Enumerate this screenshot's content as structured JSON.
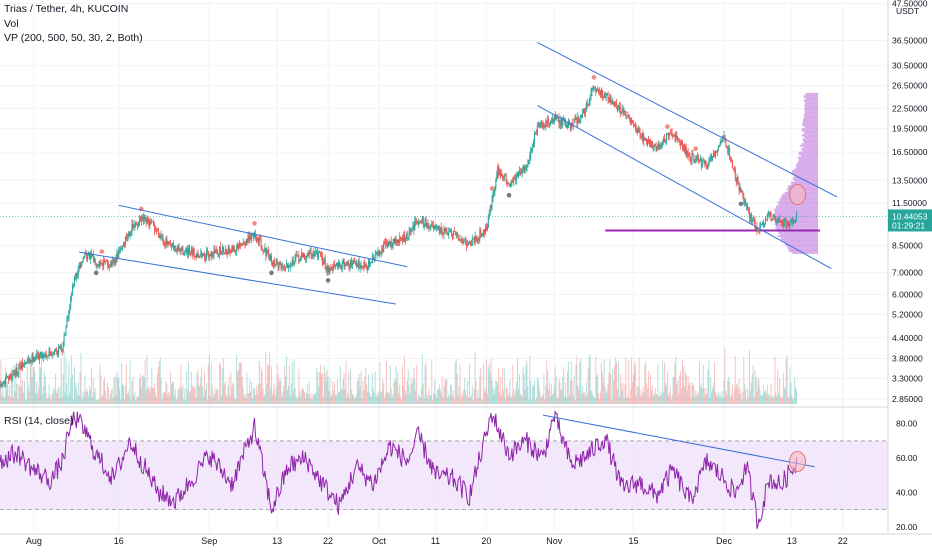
{
  "header": {
    "title": "Trias / Tether, 4h, KUCOIN",
    "vol_label": "Vol",
    "vp_label": "VP (200, 500, 50, 30, 2, Both)",
    "rsi_label": "RSI (14, close)"
  },
  "currency_unit": "USDT",
  "colors": {
    "up": "#26a69a",
    "down": "#ef5350",
    "trendline": "#3a6fd8",
    "rsi": "#8e24aa",
    "rsi_band": "#efe0fa",
    "profile": "#c98ee3",
    "poc": "#9c27b0",
    "price_tag": "#26a69a",
    "circle": "#f7b9bf"
  },
  "chart_data": [
    {
      "type": "candlestick",
      "title": "Trias / Tether, 4h, KUCOIN",
      "scale": "log",
      "ylim": [
        2.75,
        48
      ],
      "y_ticks": [
        "47.50000",
        "36.50000",
        "30.50000",
        "26.50000",
        "22.50000",
        "19.50000",
        "16.50000",
        "13.50000",
        "11.50000",
        "8.50000",
        "7.00000",
        "6.00000",
        "5.20000",
        "4.40000",
        "3.80000",
        "3.30000",
        "2.85000"
      ],
      "last_price": "10.44053",
      "countdown": "01:29:21",
      "x_ticks": [
        "Aug",
        "16",
        "Sep",
        "13",
        "22",
        "Oct",
        "11",
        "20",
        "Nov",
        "15",
        "Dec",
        "13",
        "22"
      ],
      "x_tick_dates": [
        "2020-08-01",
        "2020-08-16",
        "2020-09-01",
        "2020-09-13",
        "2020-09-22",
        "2020-10-01",
        "2020-10-11",
        "2020-10-20",
        "2020-11-01",
        "2020-11-15",
        "2020-12-01",
        "2020-12-13",
        "2020-12-22"
      ],
      "xlim": [
        "2020-07-26",
        "2020-12-30"
      ],
      "close_path": [
        [
          "2020-07-26",
          3.1
        ],
        [
          "2020-07-29",
          3.5
        ],
        [
          "2020-08-01",
          3.85
        ],
        [
          "2020-08-04",
          3.95
        ],
        [
          "2020-08-06",
          4.1
        ],
        [
          "2020-08-08",
          6.5
        ],
        [
          "2020-08-10",
          8.0
        ],
        [
          "2020-08-12",
          7.6
        ],
        [
          "2020-08-15",
          7.4
        ],
        [
          "2020-08-18",
          9.5
        ],
        [
          "2020-08-20",
          10.2
        ],
        [
          "2020-08-22",
          9.8
        ],
        [
          "2020-08-25",
          8.4
        ],
        [
          "2020-08-28",
          8.1
        ],
        [
          "2020-08-31",
          7.9
        ],
        [
          "2020-09-03",
          8.2
        ],
        [
          "2020-09-06",
          8.3
        ],
        [
          "2020-09-09",
          9.2
        ],
        [
          "2020-09-12",
          7.6
        ],
        [
          "2020-09-14",
          7.3
        ],
        [
          "2020-09-17",
          7.8
        ],
        [
          "2020-09-20",
          8.1
        ],
        [
          "2020-09-22",
          7.2
        ],
        [
          "2020-09-25",
          7.5
        ],
        [
          "2020-09-29",
          7.4
        ],
        [
          "2020-10-02",
          8.5
        ],
        [
          "2020-10-06",
          9.0
        ],
        [
          "2020-10-08",
          10.3
        ],
        [
          "2020-10-11",
          9.5
        ],
        [
          "2020-10-14",
          9.2
        ],
        [
          "2020-10-17",
          8.6
        ],
        [
          "2020-10-20",
          9.6
        ],
        [
          "2020-10-22",
          14.5
        ],
        [
          "2020-10-24",
          13.2
        ],
        [
          "2020-10-27",
          14.8
        ],
        [
          "2020-10-29",
          19.5
        ],
        [
          "2020-11-01",
          21.0
        ],
        [
          "2020-11-04",
          20.0
        ],
        [
          "2020-11-06",
          21.5
        ],
        [
          "2020-11-08",
          26.0
        ],
        [
          "2020-11-11",
          24.0
        ],
        [
          "2020-11-14",
          21.0
        ],
        [
          "2020-11-17",
          18.0
        ],
        [
          "2020-11-19",
          17.0
        ],
        [
          "2020-11-22",
          19.0
        ],
        [
          "2020-11-25",
          16.0
        ],
        [
          "2020-11-28",
          15.0
        ],
        [
          "2020-12-01",
          18.5
        ],
        [
          "2020-12-03",
          14.0
        ],
        [
          "2020-12-05",
          11.0
        ],
        [
          "2020-12-07",
          9.4
        ],
        [
          "2020-12-09",
          10.5
        ],
        [
          "2020-12-12",
          9.9
        ],
        [
          "2020-12-14",
          10.44
        ]
      ],
      "trendlines": [
        {
          "p1": [
            "2020-08-16",
            11.3
          ],
          "p2": [
            "2020-10-06",
            7.3
          ]
        },
        {
          "p1": [
            "2020-08-09",
            8.1
          ],
          "p2": [
            "2020-10-04",
            5.6
          ]
        },
        {
          "p1": [
            "2020-10-29",
            36.0
          ],
          "p2": [
            "2020-12-21",
            12.0
          ]
        },
        {
          "p1": [
            "2020-10-29",
            23.0
          ],
          "p2": [
            "2020-12-20",
            7.2
          ]
        }
      ],
      "poc_line": {
        "price": 9.45,
        "from": "2020-11-10",
        "to": "2020-12-18"
      },
      "highlight": {
        "date": "2020-12-14",
        "price": 12.2
      }
    },
    {
      "type": "line",
      "title": "RSI (14, close)",
      "ylim": [
        17,
        88
      ],
      "y_ticks": [
        80,
        60,
        40,
        20
      ],
      "bands": [
        30,
        70
      ],
      "path": [
        [
          "2020-07-26",
          58
        ],
        [
          "2020-07-29",
          63
        ],
        [
          "2020-08-01",
          53
        ],
        [
          "2020-08-04",
          47
        ],
        [
          "2020-08-06",
          58
        ],
        [
          "2020-08-08",
          85
        ],
        [
          "2020-08-10",
          76
        ],
        [
          "2020-08-12",
          62
        ],
        [
          "2020-08-15",
          48
        ],
        [
          "2020-08-18",
          70
        ],
        [
          "2020-08-20",
          58
        ],
        [
          "2020-08-23",
          40
        ],
        [
          "2020-08-26",
          35
        ],
        [
          "2020-08-29",
          48
        ],
        [
          "2020-09-01",
          62
        ],
        [
          "2020-09-05",
          45
        ],
        [
          "2020-09-09",
          78
        ],
        [
          "2020-09-12",
          30
        ],
        [
          "2020-09-15",
          55
        ],
        [
          "2020-09-18",
          60
        ],
        [
          "2020-09-21",
          45
        ],
        [
          "2020-09-24",
          32
        ],
        [
          "2020-09-27",
          55
        ],
        [
          "2020-09-30",
          45
        ],
        [
          "2020-10-03",
          67
        ],
        [
          "2020-10-06",
          58
        ],
        [
          "2020-10-08",
          73
        ],
        [
          "2020-10-11",
          50
        ],
        [
          "2020-10-14",
          48
        ],
        [
          "2020-10-17",
          38
        ],
        [
          "2020-10-19",
          62
        ],
        [
          "2020-10-21",
          86
        ],
        [
          "2020-10-24",
          62
        ],
        [
          "2020-10-27",
          70
        ],
        [
          "2020-10-30",
          60
        ],
        [
          "2020-11-01",
          85
        ],
        [
          "2020-11-04",
          56
        ],
        [
          "2020-11-07",
          62
        ],
        [
          "2020-11-10",
          72
        ],
        [
          "2020-11-13",
          42
        ],
        [
          "2020-11-16",
          46
        ],
        [
          "2020-11-19",
          38
        ],
        [
          "2020-11-22",
          53
        ],
        [
          "2020-11-25",
          35
        ],
        [
          "2020-11-28",
          58
        ],
        [
          "2020-12-01",
          48
        ],
        [
          "2020-12-03",
          39
        ],
        [
          "2020-12-05",
          55
        ],
        [
          "2020-12-07",
          22
        ],
        [
          "2020-12-09",
          48
        ],
        [
          "2020-12-11",
          44
        ],
        [
          "2020-12-14",
          58
        ]
      ],
      "trendline": {
        "p1": [
          "2020-10-30",
          85
        ],
        "p2": [
          "2020-12-17",
          55
        ]
      },
      "highlight": {
        "date": "2020-12-14",
        "value": 58
      }
    }
  ]
}
